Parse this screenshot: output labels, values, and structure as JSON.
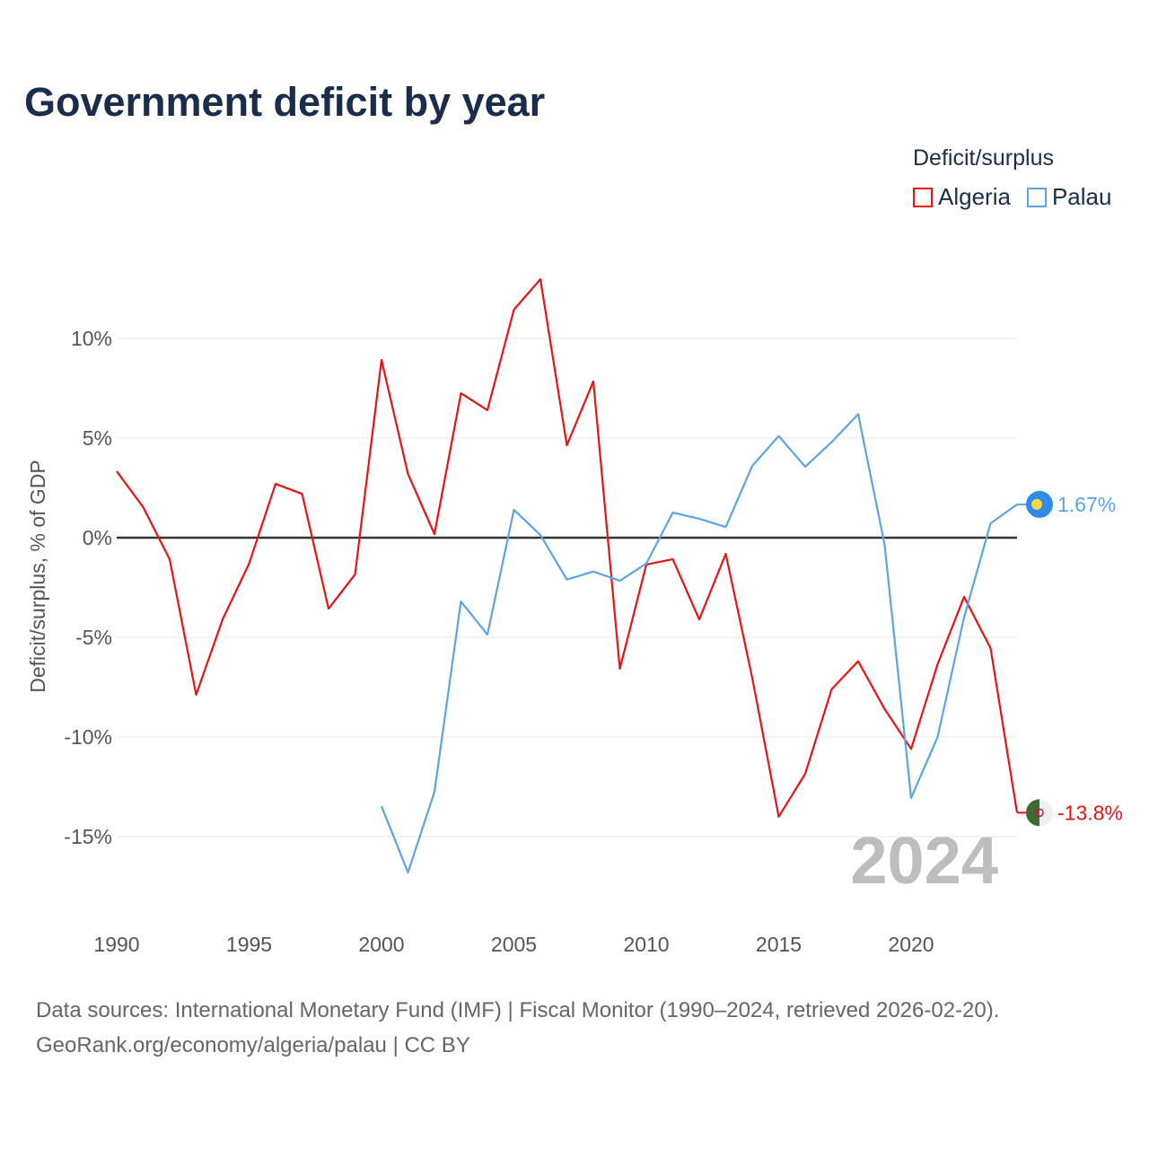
{
  "chart_data": {
    "type": "line",
    "title": "Government deficit by year",
    "ylabel": "Deficit/surplus, % of GDP",
    "xlabel": "",
    "ylim": [
      -18,
      13
    ],
    "xlim": [
      1990,
      2024
    ],
    "x_ticks": [
      1990,
      1995,
      2000,
      2005,
      2010,
      2015,
      2020
    ],
    "y_ticks": [
      10,
      5,
      0,
      -5,
      -10,
      -15
    ],
    "y_tick_labels": [
      "10%",
      "5%",
      "0%",
      "-5%",
      "-10%",
      "-15%"
    ],
    "x_tick_labels": [
      "1990",
      "1995",
      "2000",
      "2005",
      "2010",
      "2015",
      "2020"
    ],
    "grid": true,
    "legend_title": "Deficit/surplus",
    "legend_position": "top-right",
    "watermark_year": "2024",
    "series": [
      {
        "name": "Algeria",
        "color": "#ee1111",
        "end_label": "-13.8%",
        "x": [
          1990,
          1991,
          1992,
          1993,
          1994,
          1995,
          1996,
          1997,
          1998,
          1999,
          2000,
          2001,
          2002,
          2003,
          2004,
          2005,
          2006,
          2007,
          2008,
          2009,
          2010,
          2011,
          2012,
          2013,
          2014,
          2015,
          2016,
          2017,
          2018,
          2019,
          2020,
          2021,
          2022,
          2023,
          2024
        ],
        "values": [
          3.33,
          1.53,
          -1.08,
          -7.88,
          -4.1,
          -1.3,
          2.7,
          2.2,
          -3.56,
          -1.85,
          8.92,
          3.2,
          0.18,
          7.25,
          6.4,
          11.44,
          12.97,
          4.64,
          7.84,
          -6.58,
          -1.35,
          -1.08,
          -4.1,
          -0.81,
          -7.03,
          -14.0,
          -11.85,
          -7.6,
          -6.2,
          -8.6,
          -10.6,
          -6.35,
          -2.97,
          -5.54,
          -13.8
        ]
      },
      {
        "name": "Palau",
        "color": "#5ba4e8",
        "end_label": "1.67%",
        "x": [
          2000,
          2001,
          2002,
          2003,
          2004,
          2005,
          2006,
          2007,
          2008,
          2009,
          2010,
          2011,
          2012,
          2013,
          2014,
          2015,
          2016,
          2017,
          2018,
          2019,
          2020,
          2021,
          2022,
          2023,
          2024
        ],
        "values": [
          -13.47,
          -16.8,
          -12.75,
          -3.2,
          -4.86,
          1.4,
          0.14,
          -2.1,
          -1.7,
          -2.16,
          -1.3,
          1.26,
          0.95,
          0.54,
          3.6,
          5.1,
          3.56,
          4.8,
          6.2,
          -0.36,
          -13.06,
          -10.0,
          -4.0,
          0.72,
          1.67
        ]
      }
    ]
  },
  "source_line1": "Data sources: International Monetary Fund (IMF) | Fiscal Monitor (1990–2024, retrieved 2026-02-20).",
  "source_line2": "GeoRank.org/economy/algeria/palau | CC BY"
}
